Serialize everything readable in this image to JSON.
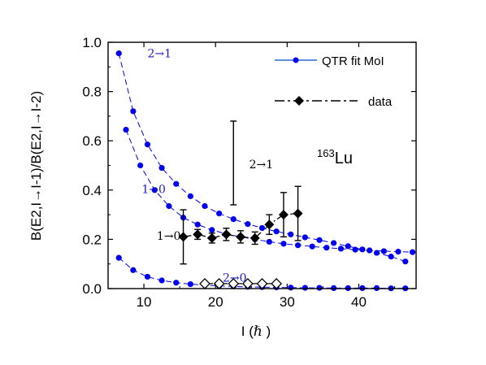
{
  "chart_data": {
    "type": "scatter",
    "xlabel_prefix": "I (",
    "xlabel_hbar": "ℏ",
    "xlabel_suffix": " )",
    "ylabel": "B(E2,I→I-1)/B(E2,I→I-2)",
    "xlim": [
      5,
      48
    ],
    "ylim": [
      0,
      1.0
    ],
    "x_ticks": [
      10,
      20,
      30,
      40
    ],
    "y_ticks": [
      0.0,
      0.2,
      0.4,
      0.6,
      0.8,
      1.0
    ],
    "y_tick_labels": [
      "0.0",
      "0.2",
      "0.4",
      "0.6",
      "0.8",
      "1.0"
    ],
    "nucleus_mass": "163",
    "nucleus_symbol": "Lu",
    "legend": {
      "fit": "QTR fit MoI",
      "data": "data",
      "position": "top-right"
    },
    "annotations": [
      {
        "text": "2→1",
        "x": 10.5,
        "y": 0.955,
        "color": "#1c1cc8"
      },
      {
        "text": "1→0",
        "x": 9.7,
        "y": 0.405,
        "color": "#1c1cc8"
      },
      {
        "text": "2→0",
        "x": 21.0,
        "y": 0.045,
        "color": "#1c1cc8"
      },
      {
        "text": "2→1",
        "x": 24.7,
        "y": 0.505,
        "color": "#000000"
      },
      {
        "text": "1→0",
        "x": 11.8,
        "y": 0.215,
        "color": "#000000"
      }
    ],
    "series": [
      {
        "name": "QTR fit MoI",
        "kind": "fit",
        "color": "#0000ee",
        "x": [
          6.5,
          8.5,
          10.5,
          12.5,
          14.5,
          16.5,
          18.5,
          20.5,
          22.5,
          24.5,
          26.5,
          28.5,
          30.5,
          32.5,
          34.5,
          36.5,
          38.5,
          40.5,
          42.5,
          44.5,
          46.5
        ],
        "y": [
          0.955,
          0.72,
          0.585,
          0.49,
          0.425,
          0.375,
          0.335,
          0.305,
          0.282,
          0.262,
          0.246,
          0.232,
          0.22,
          0.208,
          0.197,
          0.185,
          0.172,
          0.159,
          0.145,
          0.13,
          0.11
        ]
      },
      {
        "kind": "fit",
        "color": "#0000ee",
        "x": [
          7.5,
          9.5,
          11.5,
          13.5,
          15.5,
          17.5,
          19.5,
          21.5,
          23.5,
          25.5,
          27.5,
          29.5,
          31.5,
          33.5,
          35.5,
          37.5,
          39.5,
          41.5,
          43.5,
          45.5,
          47.5
        ],
        "y": [
          0.645,
          0.5,
          0.4,
          0.335,
          0.288,
          0.26,
          0.238,
          0.222,
          0.21,
          0.2,
          0.19,
          0.182,
          0.176,
          0.171,
          0.166,
          0.162,
          0.158,
          0.155,
          0.152,
          0.15,
          0.148
        ]
      },
      {
        "kind": "fit",
        "color": "#0000ee",
        "x": [
          6.5,
          8.5,
          10.5,
          12.5,
          14.5,
          16.5,
          18.5,
          20.5,
          22.5,
          24.5,
          26.5,
          28.5,
          30.5,
          32.5,
          34.5,
          36.5,
          38.5,
          40.5,
          42.5,
          44.5,
          46.5
        ],
        "y": [
          0.125,
          0.075,
          0.048,
          0.033,
          0.024,
          0.018,
          0.014,
          0.011,
          0.009,
          0.007,
          0.006,
          0.005,
          0.004,
          0.003,
          0.003,
          0.002,
          0.002,
          0.002,
          0.002,
          0.001,
          0.001
        ]
      },
      {
        "name": "data",
        "kind": "data",
        "marker": "diamond-filled",
        "color": "#000000",
        "x": [
          15.5,
          17.5,
          19.5,
          21.5,
          23.5,
          25.5,
          27.5,
          29.5,
          31.5
        ],
        "y": [
          0.21,
          0.22,
          0.205,
          0.22,
          0.21,
          0.205,
          0.26,
          0.3,
          0.305
        ],
        "err": [
          0.11,
          0.02,
          0.02,
          0.025,
          0.025,
          0.025,
          0.04,
          0.09,
          0.11
        ]
      },
      {
        "kind": "data",
        "marker": "diamond-open",
        "color": "#000000",
        "x": [
          18.5,
          20.5,
          22.5,
          24.5,
          26.5,
          28.5
        ],
        "y": [
          0.02,
          0.02,
          0.02,
          0.02,
          0.02,
          0.02
        ]
      },
      {
        "kind": "errorbar-only",
        "color": "#000000",
        "x": [
          22.5
        ],
        "y_low": [
          0.34
        ],
        "y_high": [
          0.68
        ]
      }
    ]
  }
}
